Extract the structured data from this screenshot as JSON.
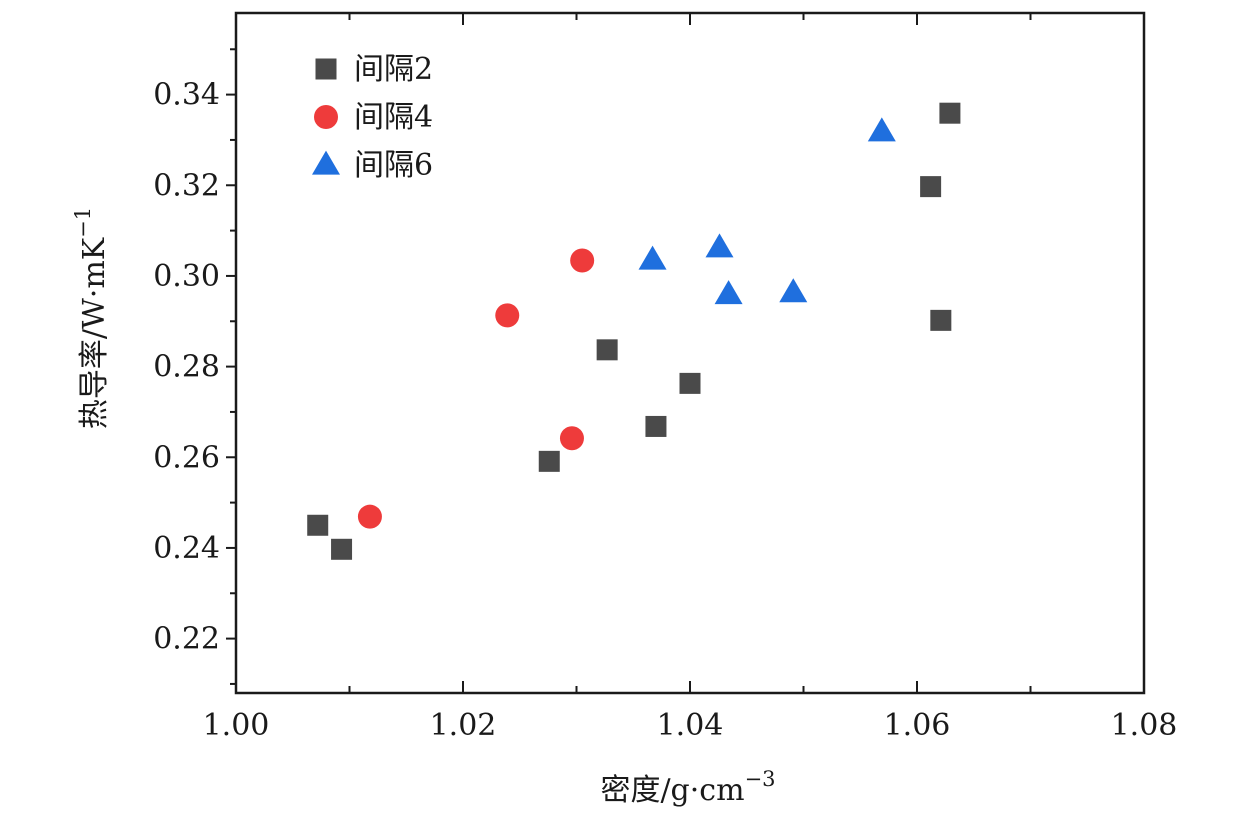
{
  "chart_data": {
    "type": "scatter",
    "xlabel": "密度/g·cm",
    "xlabel_sup": "−3",
    "ylabel": "热导率/W·mK",
    "ylabel_sup": "−1",
    "xlim": [
      1.0,
      1.08
    ],
    "ylim": [
      0.208,
      0.358
    ],
    "x_ticks": [
      1.0,
      1.02,
      1.04,
      1.06,
      1.08
    ],
    "x_tick_labels": [
      "1.00",
      "1.02",
      "1.04",
      "1.06",
      "1.08"
    ],
    "y_ticks": [
      0.22,
      0.24,
      0.26,
      0.28,
      0.3,
      0.32,
      0.34
    ],
    "y_tick_labels": [
      "0.22",
      "0.24",
      "0.26",
      "0.28",
      "0.30",
      "0.32",
      "0.34"
    ],
    "grid": false,
    "legend_position": "top-left",
    "series": [
      {
        "name": "间隔2",
        "marker": "square",
        "color": "#4a4a4a",
        "points": [
          [
            1.0072,
            0.245
          ],
          [
            1.0093,
            0.2397
          ],
          [
            1.0276,
            0.2591
          ],
          [
            1.0327,
            0.2837
          ],
          [
            1.037,
            0.2668
          ],
          [
            1.04,
            0.2763
          ],
          [
            1.0612,
            0.3197
          ],
          [
            1.0621,
            0.2902
          ],
          [
            1.0629,
            0.3359
          ]
        ]
      },
      {
        "name": "间隔4",
        "marker": "circle",
        "color": "#ee3b3b",
        "points": [
          [
            1.0118,
            0.2469
          ],
          [
            1.0239,
            0.2913
          ],
          [
            1.0296,
            0.2642
          ],
          [
            1.0305,
            0.3034
          ]
        ]
      },
      {
        "name": "间隔6",
        "marker": "triangle",
        "color": "#1f6fde",
        "points": [
          [
            1.0367,
            0.3035
          ],
          [
            1.0426,
            0.3062
          ],
          [
            1.0434,
            0.2959
          ],
          [
            1.0491,
            0.2963
          ],
          [
            1.0569,
            0.3318
          ]
        ]
      }
    ]
  }
}
